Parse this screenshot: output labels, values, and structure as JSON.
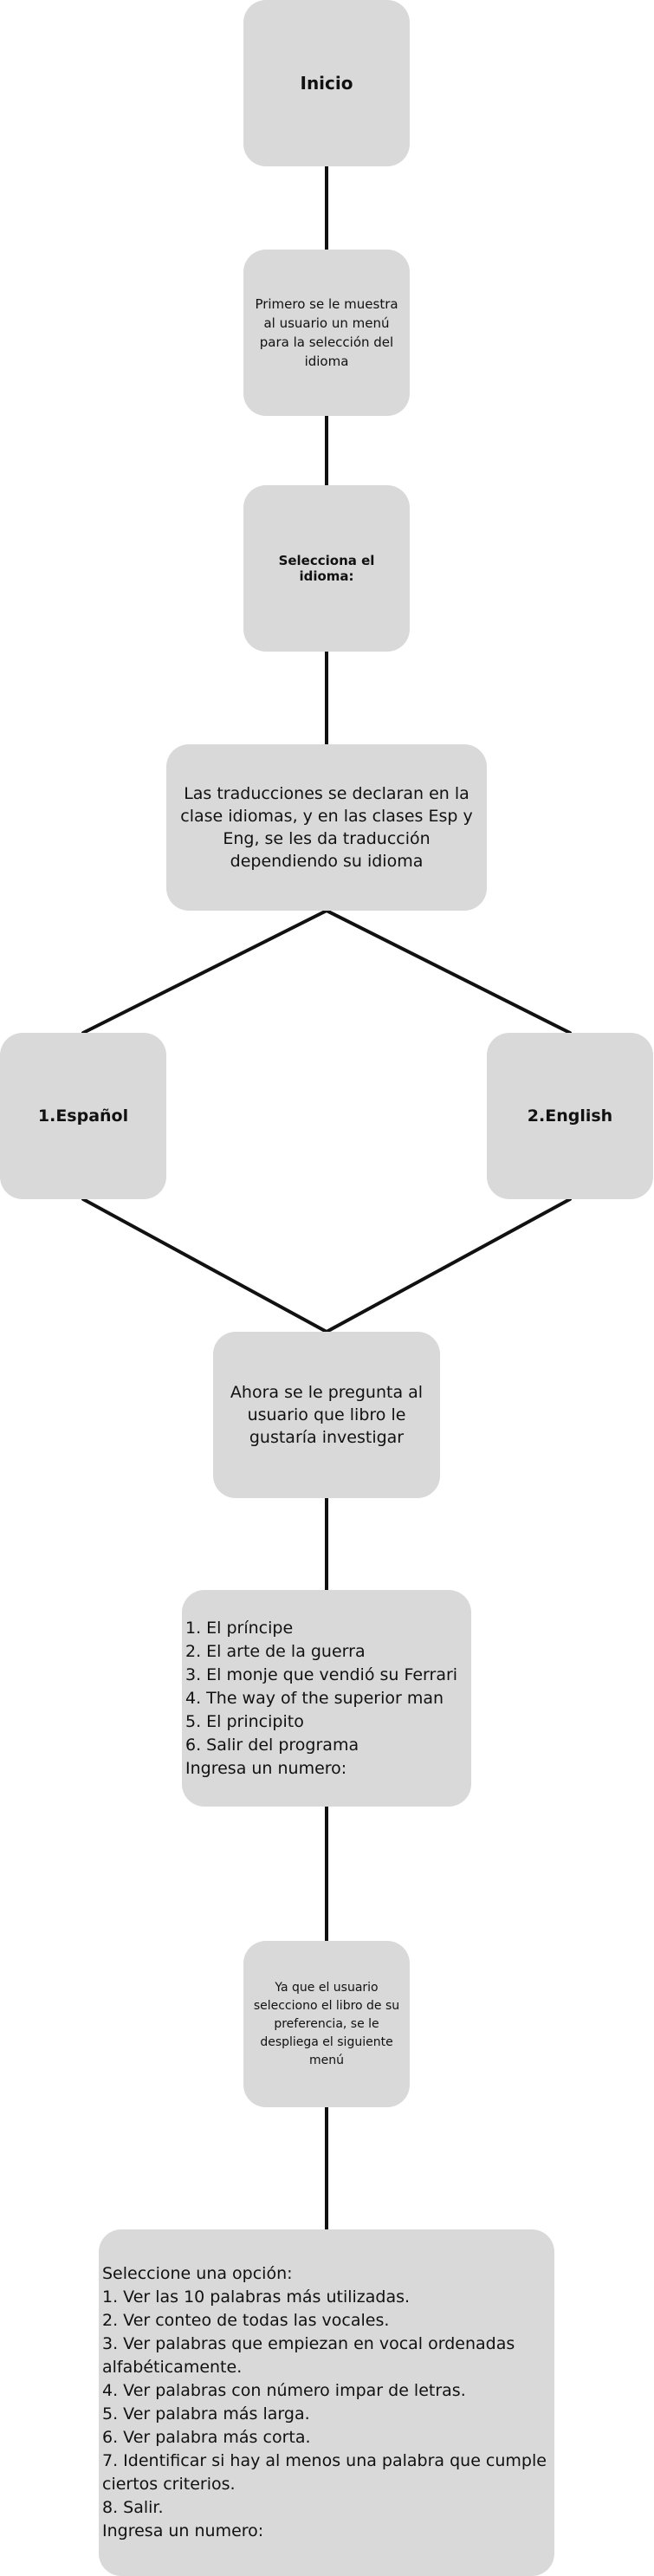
{
  "nodes": {
    "inicio": "Inicio",
    "menu_idioma": "Primero se le muestra al usuario un menú para la selección del idioma",
    "selecciona": "Selecciona el idioma:",
    "traducciones": "Las traducciones se declaran en la clase idiomas, y en las clases Esp y Eng, se les da traducción dependiendo su idioma",
    "espanol": "1.Español",
    "english": "2.English",
    "pregunta_libro": "Ahora se le pregunta al usuario que libro le gustaría investigar",
    "lista_libros": "1. El príncipe\n2. El arte de la guerra\n3. El monje que vendió su Ferrari\n4. The way of the superior man\n5. El principito\n6. Salir del programa\nIngresa un numero:",
    "despliega_menu": "Ya que el usuario selecciono el libro de su preferencia, se le despliega el siguiente menú",
    "opciones": "Seleccione una opción:\n1. Ver las 10 palabras más utilizadas.\n2. Ver conteo de todas las vocales.\n3. Ver palabras que empiezan en vocal ordenadas alfabéticamente.\n4. Ver palabras con número impar de letras.\n5. Ver palabra más larga.\n6. Ver palabra más corta.\n7. Identificar si hay al menos una palabra que cumple ciertos criterios.\n8. Salir.\nIngresa un numero:"
  },
  "colors": {
    "node_fill": "#d9d9d9",
    "connector": "#111111",
    "text": "#111111",
    "background": "#ffffff"
  }
}
